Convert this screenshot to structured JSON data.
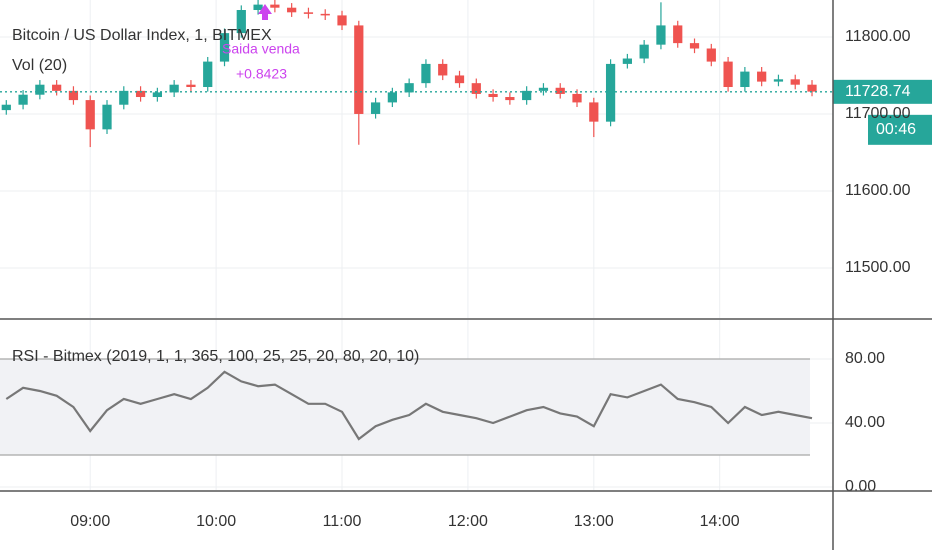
{
  "chart_data": [
    {
      "type": "candlestick",
      "title": "Bitcoin / US Dollar Index, 1, BITMEX",
      "indicator": "Vol (20)",
      "x": [
        500,
        508,
        516,
        524,
        532,
        540,
        548,
        556,
        564,
        572,
        580,
        588,
        596,
        604,
        612,
        620,
        628,
        636,
        644,
        652,
        660,
        668,
        676,
        684,
        692,
        700,
        708,
        716,
        724,
        732,
        740,
        748,
        756,
        764,
        772,
        780,
        788,
        796,
        804,
        812,
        820,
        828,
        836,
        844,
        852,
        860,
        868,
        876,
        884
      ],
      "open": [
        11705,
        11712,
        11725,
        11738,
        11730,
        11718,
        11680,
        11712,
        11730,
        11722,
        11728,
        11738,
        11735,
        11768,
        11805,
        11835,
        11842,
        11838,
        11832,
        11830,
        11828,
        11815,
        11700,
        11715,
        11728,
        11740,
        11765,
        11750,
        11740,
        11726,
        11722,
        11718,
        11730,
        11734,
        11726,
        11715,
        11690,
        11765,
        11772,
        11790,
        11815,
        11792,
        11785,
        11768,
        11735,
        11755,
        11742,
        11745,
        11738
      ],
      "high": [
        11718,
        11731,
        11744,
        11744,
        11736,
        11724,
        11718,
        11736,
        11736,
        11734,
        11744,
        11744,
        11774,
        11811,
        11841,
        11848,
        11848,
        11844,
        11838,
        11836,
        11834,
        11821,
        11721,
        11734,
        11746,
        11771,
        11771,
        11756,
        11746,
        11732,
        11728,
        11736,
        11740,
        11740,
        11732,
        11721,
        11771,
        11778,
        11796,
        11845,
        11821,
        11798,
        11791,
        11774,
        11761,
        11761,
        11751,
        11751,
        11744
      ],
      "low": [
        11699,
        11706,
        11719,
        11724,
        11712,
        11657,
        11674,
        11706,
        11716,
        11716,
        11722,
        11729,
        11729,
        11762,
        11799,
        11829,
        11832,
        11826,
        11824,
        11822,
        11809,
        11660,
        11694,
        11709,
        11722,
        11734,
        11744,
        11734,
        11720,
        11716,
        11712,
        11712,
        11724,
        11720,
        11709,
        11670,
        11684,
        11759,
        11766,
        11784,
        11786,
        11779,
        11762,
        11729,
        11729,
        11736,
        11736,
        11732,
        11723
      ],
      "close": [
        11712,
        11725,
        11738,
        11730,
        11718,
        11680,
        11712,
        11730,
        11722,
        11728,
        11738,
        11735,
        11768,
        11805,
        11835,
        11842,
        11838,
        11832,
        11830,
        11828,
        11815,
        11700,
        11715,
        11728,
        11740,
        11765,
        11750,
        11740,
        11726,
        11722,
        11718,
        11730,
        11734,
        11726,
        11715,
        11690,
        11765,
        11772,
        11790,
        11815,
        11792,
        11785,
        11768,
        11735,
        11755,
        11742,
        11745,
        11738,
        11729
      ],
      "up_color": "#26a69a",
      "down_color": "#ef5350",
      "xlim": [
        497,
        894
      ],
      "ylim": [
        11435,
        11848
      ],
      "yticks": [
        {
          "value": 11500,
          "label": "11500.00"
        },
        {
          "value": 11600,
          "label": "11600.00"
        },
        {
          "value": 11700,
          "label": "11700.00"
        },
        {
          "value": 11800,
          "label": "11800.00"
        }
      ],
      "grid": true,
      "last_price": 11728.74,
      "countdown": "00:46",
      "annotations": [
        "Saida venda",
        "+0.8423"
      ],
      "annotation_color": "#cc44ee"
    },
    {
      "type": "line",
      "title": "RSI - Bitmex (2019, 1, 1, 365, 100, 25, 25, 20, 80, 20, 10)",
      "x": [
        500,
        508,
        516,
        524,
        532,
        540,
        548,
        556,
        564,
        572,
        580,
        588,
        596,
        604,
        612,
        620,
        628,
        636,
        644,
        652,
        660,
        668,
        676,
        684,
        692,
        700,
        708,
        716,
        724,
        732,
        740,
        748,
        756,
        764,
        772,
        780,
        788,
        796,
        804,
        812,
        820,
        828,
        836,
        844,
        852,
        860,
        868,
        876,
        884
      ],
      "values": [
        55,
        62,
        60,
        57,
        50,
        35,
        48,
        55,
        52,
        55,
        58,
        55,
        62,
        72,
        66,
        63,
        64,
        58,
        52,
        52,
        47,
        30,
        38,
        42,
        45,
        52,
        47,
        45,
        43,
        40,
        44,
        48,
        50,
        46,
        44,
        38,
        58,
        56,
        60,
        64,
        55,
        53,
        50,
        40,
        50,
        45,
        47,
        45,
        43
      ],
      "color": "#777777",
      "band": [
        20,
        80
      ],
      "xlim": [
        497,
        894
      ],
      "ylim": [
        -1.9,
        104.4
      ],
      "yticks": [
        {
          "value": 0,
          "label": "0.00"
        },
        {
          "value": 40,
          "label": "40.00"
        },
        {
          "value": 80,
          "label": "80.00"
        }
      ],
      "xticks": [
        {
          "value": 540,
          "label": "09:00"
        },
        {
          "value": 600,
          "label": "10:00"
        },
        {
          "value": 660,
          "label": "11:00"
        },
        {
          "value": 720,
          "label": "12:00"
        },
        {
          "value": 780,
          "label": "13:00"
        },
        {
          "value": 840,
          "label": "14:00"
        }
      ],
      "grid": true
    }
  ]
}
